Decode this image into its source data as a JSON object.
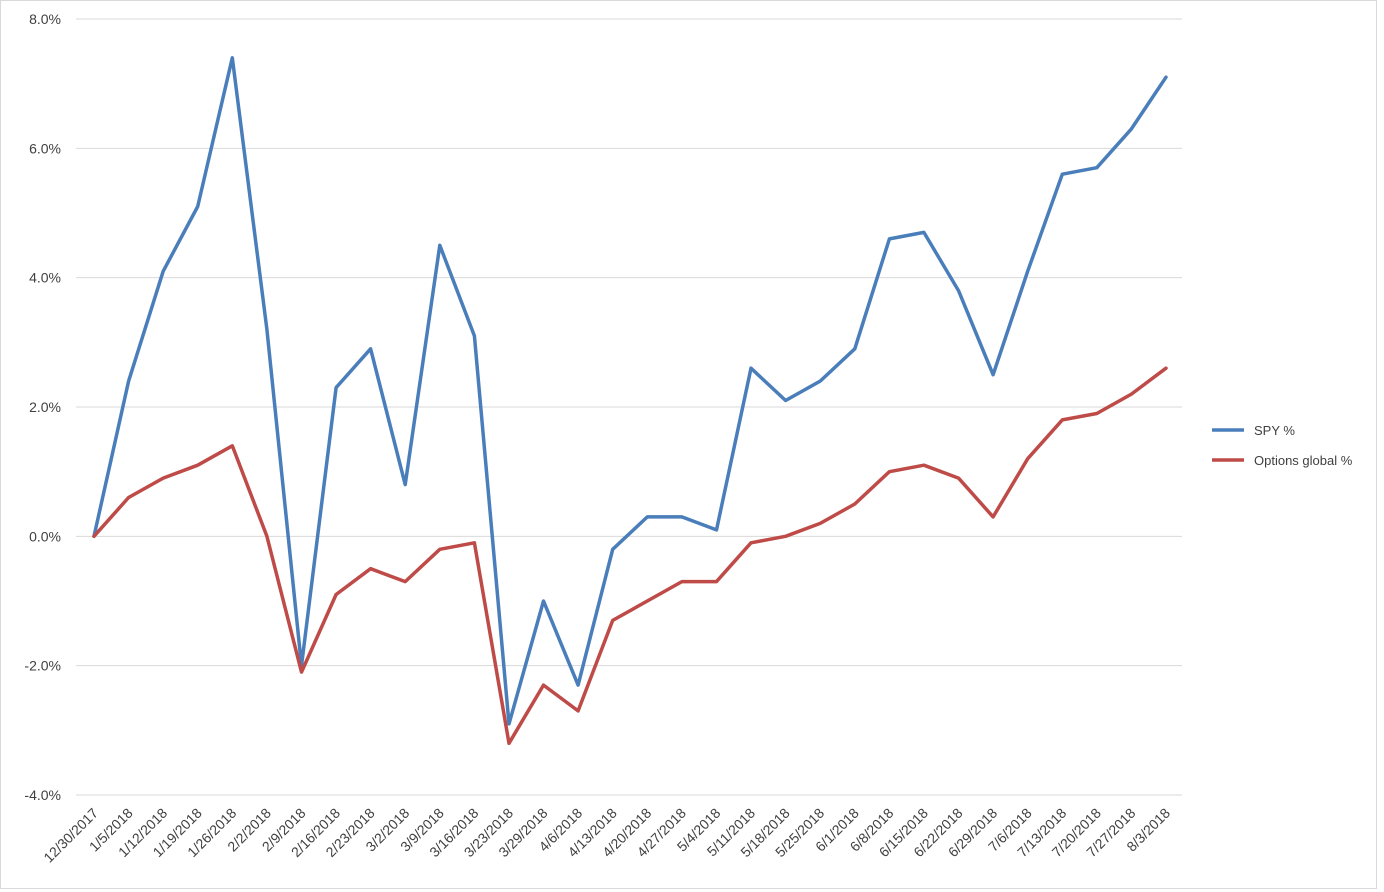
{
  "chart_data": {
    "type": "line",
    "title": "",
    "xlabel": "",
    "ylabel": "",
    "ylim": [
      -4,
      8
    ],
    "ytick_step": 2,
    "ytick_labels": [
      "-4.0%",
      "-2.0%",
      "0.0%",
      "2.0%",
      "4.0%",
      "6.0%",
      "8.0%"
    ],
    "grid": "horizontal",
    "legend_position": "right",
    "categories": [
      "12/30/2017",
      "1/5/2018",
      "1/12/2018",
      "1/19/2018",
      "1/26/2018",
      "2/2/2018",
      "2/9/2018",
      "2/16/2018",
      "2/23/2018",
      "3/2/2018",
      "3/9/2018",
      "3/16/2018",
      "3/23/2018",
      "3/29/2018",
      "4/6/2018",
      "4/13/2018",
      "4/20/2018",
      "4/27/2018",
      "5/4/2018",
      "5/11/2018",
      "5/18/2018",
      "5/25/2018",
      "6/1/2018",
      "6/8/2018",
      "6/15/2018",
      "6/22/2018",
      "6/29/2018",
      "7/6/2018",
      "7/13/2018",
      "7/20/2018",
      "7/27/2018",
      "8/3/2018"
    ],
    "series": [
      {
        "name": "SPY %",
        "color": "#4a7ebb",
        "values": [
          0.0,
          2.4,
          4.1,
          5.1,
          7.4,
          3.2,
          -2.0,
          2.3,
          2.9,
          0.8,
          4.5,
          3.1,
          -2.9,
          -1.0,
          -2.3,
          -0.2,
          0.3,
          0.3,
          0.1,
          2.6,
          2.1,
          2.4,
          2.9,
          4.6,
          4.7,
          3.8,
          2.5,
          4.1,
          5.6,
          5.7,
          6.3,
          7.1
        ]
      },
      {
        "name": "Options global %",
        "color": "#be4b48",
        "values": [
          0.0,
          0.6,
          0.9,
          1.1,
          1.4,
          0.0,
          -2.1,
          -0.9,
          -0.5,
          -0.7,
          -0.2,
          -0.1,
          -3.2,
          -2.3,
          -2.7,
          -1.3,
          -1.0,
          -0.7,
          -0.7,
          -0.1,
          0.0,
          0.2,
          0.5,
          1.0,
          1.1,
          0.9,
          0.3,
          1.2,
          1.8,
          1.9,
          2.2,
          2.6
        ]
      }
    ]
  }
}
